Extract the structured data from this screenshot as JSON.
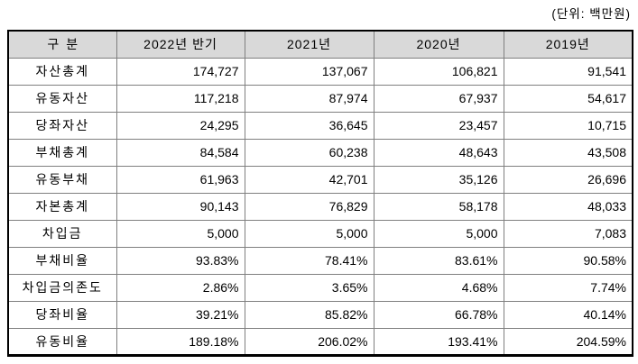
{
  "unit_label": "(단위: 백만원)",
  "colors": {
    "header_bg": "#d9d9d9",
    "grid_line": "#7f7f7f",
    "outer_border": "#000000",
    "text": "#000000",
    "background": "#ffffff"
  },
  "table": {
    "columns": [
      "구분",
      "2022년 반기",
      "2021년",
      "2020년",
      "2019년"
    ],
    "rows": [
      {
        "label": "자산총계",
        "values": [
          "174,727",
          "137,067",
          "106,821",
          "91,541"
        ]
      },
      {
        "label": "유동자산",
        "values": [
          "117,218",
          "87,974",
          "67,937",
          "54,617"
        ]
      },
      {
        "label": "당좌자산",
        "values": [
          "24,295",
          "36,645",
          "23,457",
          "10,715"
        ]
      },
      {
        "label": "부채총계",
        "values": [
          "84,584",
          "60,238",
          "48,643",
          "43,508"
        ]
      },
      {
        "label": "유동부채",
        "values": [
          "61,963",
          "42,701",
          "35,126",
          "26,696"
        ]
      },
      {
        "label": "자본총계",
        "values": [
          "90,143",
          "76,829",
          "58,178",
          "48,033"
        ]
      },
      {
        "label": "차입금",
        "values": [
          "5,000",
          "5,000",
          "5,000",
          "7,083"
        ]
      },
      {
        "label": "부채비율",
        "values": [
          "93.83%",
          "78.41%",
          "83.61%",
          "90.58%"
        ]
      },
      {
        "label": "차입금의존도",
        "values": [
          "2.86%",
          "3.65%",
          "4.68%",
          "7.74%"
        ]
      },
      {
        "label": "당좌비율",
        "values": [
          "39.21%",
          "85.82%",
          "66.78%",
          "40.14%"
        ]
      },
      {
        "label": "유동비율",
        "values": [
          "189.18%",
          "206.02%",
          "193.41%",
          "204.59%"
        ]
      }
    ]
  }
}
